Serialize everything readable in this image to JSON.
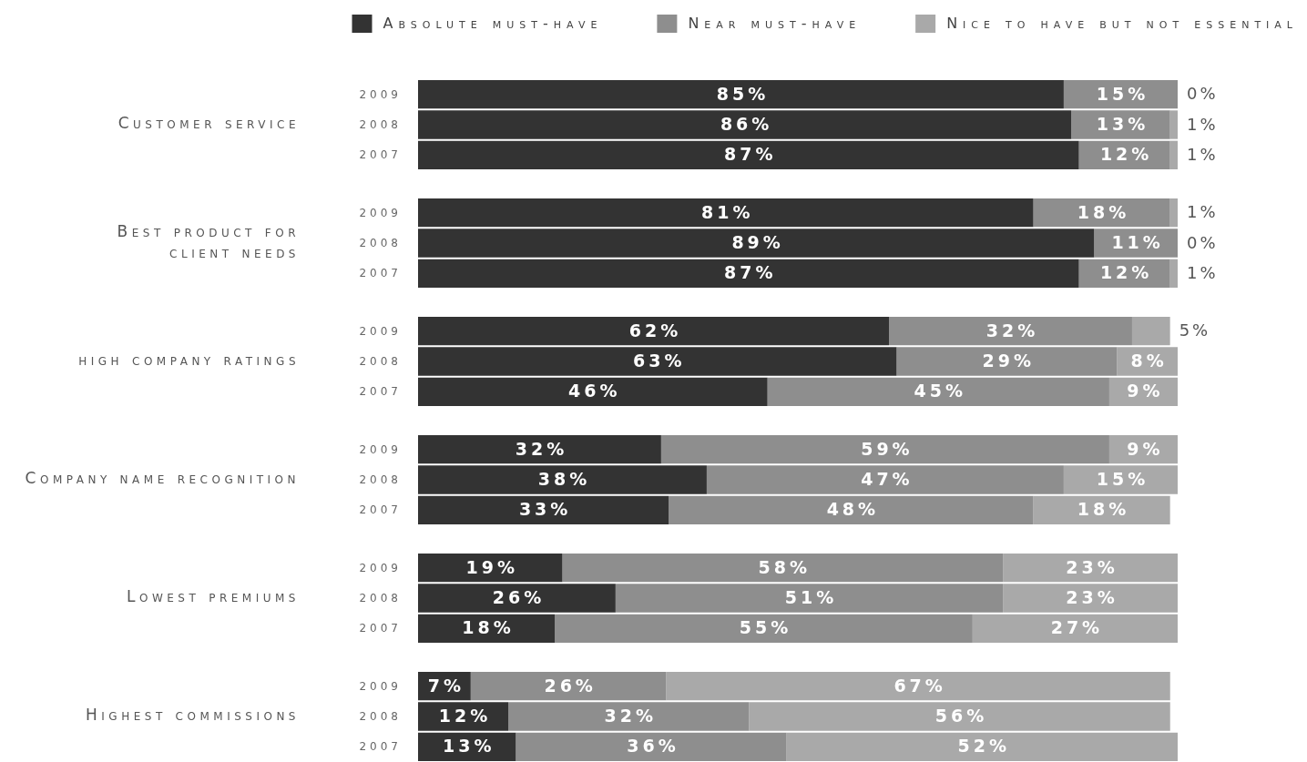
{
  "chart_data": [
    {
      "type": "bar",
      "orientation": "horizontal",
      "stacked": true,
      "legend": "top right",
      "tick_labels": "y",
      "ylabel": "Customer service",
      "categories": [
        "2009",
        "2008",
        "2007"
      ],
      "series": [
        {
          "name": "Absolute must-have",
          "color": "#333333",
          "values": [
            85,
            86,
            87
          ],
          "value_labels": [
            "85%",
            "86%",
            "87%"
          ]
        },
        {
          "name": "Near must-have",
          "color": "#8e8e8e",
          "values": [
            15,
            13,
            12
          ],
          "value_labels": [
            "15%",
            "13%",
            "12%"
          ]
        },
        {
          "name": "Nice to have but not essential",
          "color": "#a9a9a9",
          "values": [
            0,
            1,
            1
          ],
          "value_labels": [
            "0%",
            "1%",
            "1%"
          ]
        }
      ]
    },
    {
      "type": "bar",
      "orientation": "horizontal",
      "stacked": true,
      "tick_labels": "y",
      "ylabel": "Best product for\nclient needs",
      "categories": [
        "2009",
        "2008",
        "2007"
      ],
      "series": [
        {
          "color": "#333333",
          "values": [
            81,
            89,
            87
          ],
          "value_labels": [
            "81%",
            "89%",
            "87%"
          ]
        },
        {
          "color": "#8e8e8e",
          "values": [
            18,
            11,
            12
          ],
          "value_labels": [
            "18%",
            "11%",
            "12%"
          ]
        },
        {
          "color": "#a9a9a9",
          "values": [
            1,
            0,
            1
          ],
          "value_labels": [
            "1%",
            "0%",
            "1%"
          ]
        }
      ]
    },
    {
      "type": "bar",
      "orientation": "horizontal",
      "stacked": true,
      "tick_labels": "y",
      "ylabel": "high company ratings",
      "categories": [
        "2009",
        "2008",
        "2007"
      ],
      "series": [
        {
          "color": "#333333",
          "values": [
            62,
            63,
            46
          ],
          "value_labels": [
            "62%",
            "63%",
            "46%"
          ]
        },
        {
          "color": "#8e8e8e",
          "values": [
            32,
            29,
            45
          ],
          "value_labels": [
            "32%",
            "29%",
            "45%"
          ]
        },
        {
          "color": "#a9a9a9",
          "values": [
            5,
            8,
            9
          ],
          "value_labels": [
            "5%",
            "8%",
            "9%"
          ]
        }
      ]
    },
    {
      "type": "bar",
      "orientation": "horizontal",
      "stacked": true,
      "tick_labels": "y",
      "ylabel": "Company name recognition",
      "categories": [
        "2009",
        "2008",
        "2007"
      ],
      "series": [
        {
          "color": "#333333",
          "values": [
            32,
            38,
            33
          ],
          "value_labels": [
            "32%",
            "38%",
            "33%"
          ]
        },
        {
          "color": "#8e8e8e",
          "values": [
            59,
            47,
            48
          ],
          "value_labels": [
            "59%",
            "47%",
            "48%"
          ]
        },
        {
          "color": "#a9a9a9",
          "values": [
            9,
            15,
            18
          ],
          "value_labels": [
            "9%",
            "15%",
            "18%"
          ]
        }
      ]
    },
    {
      "type": "bar",
      "orientation": "horizontal",
      "stacked": true,
      "tick_labels": "y",
      "ylabel": "Lowest premiums",
      "categories": [
        "2009",
        "2008",
        "2007"
      ],
      "series": [
        {
          "color": "#333333",
          "values": [
            19,
            26,
            18
          ],
          "value_labels": [
            "19%",
            "26%",
            "18%"
          ]
        },
        {
          "color": "#8e8e8e",
          "values": [
            58,
            51,
            55
          ],
          "value_labels": [
            "58%",
            "51%",
            "55%"
          ]
        },
        {
          "color": "#a9a9a9",
          "values": [
            23,
            23,
            27
          ],
          "value_labels": [
            "23%",
            "23%",
            "27%"
          ]
        }
      ]
    },
    {
      "type": "bar",
      "orientation": "horizontal",
      "stacked": true,
      "tick_labels": "y",
      "ylabel": "Highest commissions",
      "categories": [
        "2009",
        "2008",
        "2007"
      ],
      "series": [
        {
          "color": "#333333",
          "values": [
            7,
            12,
            13
          ],
          "value_labels": [
            "7%",
            "12%",
            "13%"
          ]
        },
        {
          "color": "#8e8e8e",
          "values": [
            26,
            32,
            36
          ],
          "value_labels": [
            "26%",
            "32%",
            "36%"
          ]
        },
        {
          "color": "#a9a9a9",
          "values": [
            67,
            56,
            52
          ],
          "value_labels": [
            "67%",
            "56%",
            "52%"
          ]
        }
      ]
    }
  ]
}
